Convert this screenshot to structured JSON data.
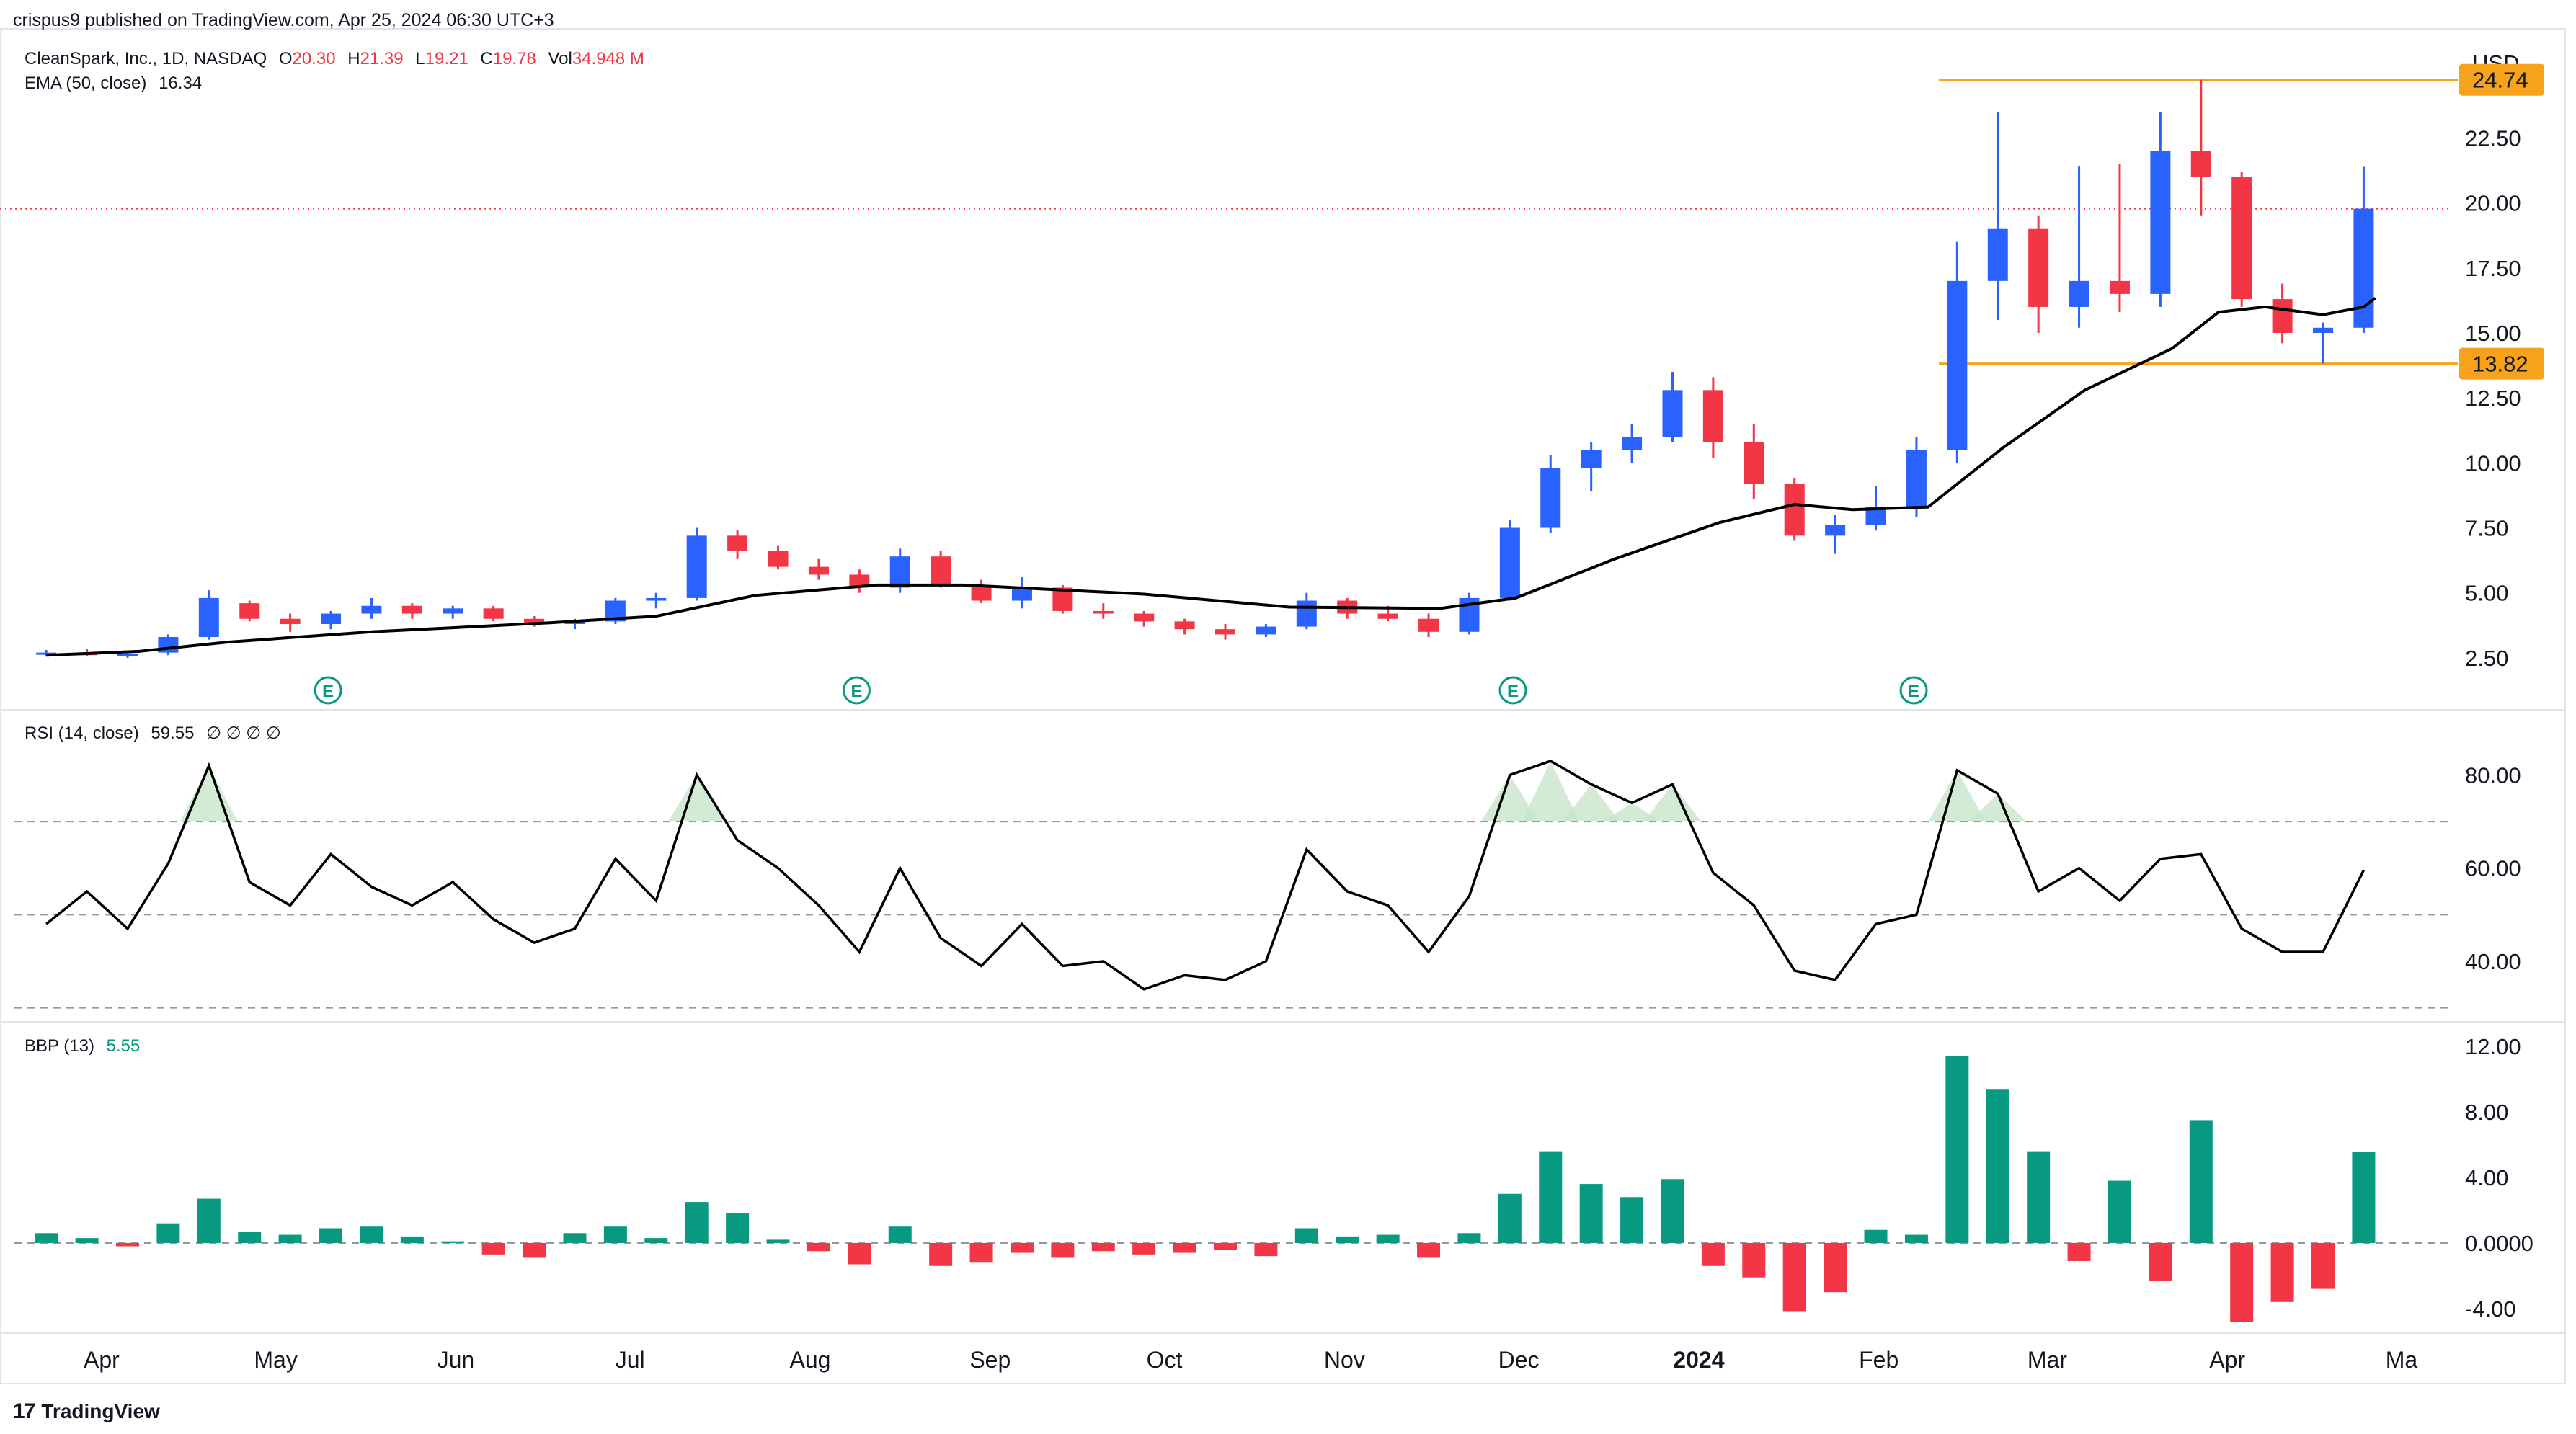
{
  "header": {
    "published": "crispus9 published on TradingView.com, Apr 25, 2024 06:30 UTC+3",
    "symbol_line": "CleanSpark, Inc., 1D, NASDAQ",
    "ohlc": {
      "o_label": "O",
      "o": "20.30",
      "h_label": "H",
      "h": "21.39",
      "l_label": "L",
      "l": "19.21",
      "c_label": "C",
      "c": "19.78",
      "vol_label": "Vol",
      "vol": "34.948 M"
    },
    "ema_label": "EMA (50, close)",
    "ema_value": "16.34",
    "rsi_label": "RSI (14, close)",
    "rsi_value": "59.55",
    "rsi_extra": "∅ ∅ ∅ ∅",
    "bbp_label": "BBP (13)",
    "bbp_value": "5.55"
  },
  "brand": {
    "logo": "17",
    "name": "TradingView"
  },
  "colors": {
    "up": "#2962ff",
    "down": "#f23645",
    "ema": "#000000",
    "level": "#f7a21b",
    "bbp_pos": "#089981",
    "bbp_neg": "#f23645",
    "rsi_fill": "#c8e6c9",
    "last_price_line": "#f23645"
  },
  "chart_data": [
    {
      "type": "candlestick",
      "title": "CleanSpark, Inc., 1D, NASDAQ",
      "currency_label": "USD",
      "y_ticks": [
        "2.50",
        "5.00",
        "7.50",
        "10.00",
        "12.50",
        "15.00",
        "17.50",
        "20.00",
        "22.50"
      ],
      "ylim": [
        0.5,
        26.7
      ],
      "x_ticks": [
        "Apr",
        "May",
        "Jun",
        "Jul",
        "Aug",
        "Sep",
        "Oct",
        "Nov",
        "Dec",
        "2024",
        "Feb",
        "Mar",
        "Apr",
        "Ma"
      ],
      "levels": [
        {
          "label": "24.74",
          "value": 24.74
        },
        {
          "label": "13.82",
          "value": 13.82
        }
      ],
      "last_price": 19.78,
      "earnings_markers": {
        "label": "E",
        "dates": [
          "2023-05-10",
          "2023-08-09",
          "2023-11-30",
          "2024-02-07"
        ]
      },
      "ema_series": {
        "name": "EMA (50, close)",
        "points": [
          [
            "2023-03-20",
            2.6
          ],
          [
            "2023-04-05",
            2.75
          ],
          [
            "2023-04-20",
            3.1
          ],
          [
            "2023-05-15",
            3.5
          ],
          [
            "2023-06-15",
            3.85
          ],
          [
            "2023-07-03",
            4.1
          ],
          [
            "2023-07-20",
            4.9
          ],
          [
            "2023-08-10",
            5.3
          ],
          [
            "2023-08-25",
            5.3
          ],
          [
            "2023-09-25",
            4.95
          ],
          [
            "2023-10-20",
            4.45
          ],
          [
            "2023-11-15",
            4.4
          ],
          [
            "2023-11-28",
            4.8
          ],
          [
            "2023-12-15",
            6.3
          ],
          [
            "2024-01-02",
            7.7
          ],
          [
            "2024-01-15",
            8.4
          ],
          [
            "2024-01-25",
            8.2
          ],
          [
            "2024-02-07",
            8.3
          ],
          [
            "2024-02-20",
            10.6
          ],
          [
            "2024-03-05",
            12.8
          ],
          [
            "2024-03-20",
            14.4
          ],
          [
            "2024-03-28",
            15.8
          ],
          [
            "2024-04-05",
            16.0
          ],
          [
            "2024-04-15",
            15.7
          ],
          [
            "2024-04-22",
            16.0
          ],
          [
            "2024-04-24",
            16.34
          ]
        ]
      },
      "ohlc": [
        [
          "2023-03-20",
          2.65,
          2.8,
          2.55,
          2.7
        ],
        [
          "2023-03-27",
          2.7,
          2.85,
          2.55,
          2.6
        ],
        [
          "2023-04-03",
          2.6,
          2.75,
          2.5,
          2.65
        ],
        [
          "2023-04-10",
          2.7,
          3.4,
          2.6,
          3.3
        ],
        [
          "2023-04-17",
          3.3,
          5.1,
          3.2,
          4.8
        ],
        [
          "2023-04-24",
          4.6,
          4.7,
          3.9,
          4.0
        ],
        [
          "2023-05-01",
          4.0,
          4.2,
          3.5,
          3.8
        ],
        [
          "2023-05-08",
          3.8,
          4.3,
          3.6,
          4.2
        ],
        [
          "2023-05-15",
          4.2,
          4.8,
          4.0,
          4.5
        ],
        [
          "2023-05-22",
          4.5,
          4.6,
          4.0,
          4.2
        ],
        [
          "2023-05-29",
          4.2,
          4.5,
          4.0,
          4.4
        ],
        [
          "2023-06-05",
          4.4,
          4.5,
          3.9,
          4.0
        ],
        [
          "2023-06-12",
          4.0,
          4.1,
          3.7,
          3.8
        ],
        [
          "2023-06-19",
          3.8,
          4.0,
          3.6,
          3.9
        ],
        [
          "2023-06-26",
          3.9,
          4.8,
          3.8,
          4.7
        ],
        [
          "2023-07-03",
          4.7,
          5.0,
          4.4,
          4.8
        ],
        [
          "2023-07-10",
          4.8,
          7.5,
          4.7,
          7.2
        ],
        [
          "2023-07-17",
          7.2,
          7.4,
          6.3,
          6.6
        ],
        [
          "2023-07-24",
          6.6,
          6.8,
          5.9,
          6.0
        ],
        [
          "2023-07-31",
          6.0,
          6.3,
          5.5,
          5.7
        ],
        [
          "2023-08-07",
          5.7,
          5.9,
          5.0,
          5.2
        ],
        [
          "2023-08-14",
          5.2,
          6.7,
          5.0,
          6.4
        ],
        [
          "2023-08-21",
          6.4,
          6.6,
          5.2,
          5.3
        ],
        [
          "2023-08-28",
          5.3,
          5.5,
          4.6,
          4.7
        ],
        [
          "2023-09-04",
          4.7,
          5.6,
          4.4,
          5.2
        ],
        [
          "2023-09-11",
          5.2,
          5.3,
          4.2,
          4.3
        ],
        [
          "2023-09-18",
          4.3,
          4.6,
          4.0,
          4.2
        ],
        [
          "2023-09-25",
          4.2,
          4.3,
          3.7,
          3.9
        ],
        [
          "2023-10-02",
          3.9,
          4.0,
          3.4,
          3.6
        ],
        [
          "2023-10-09",
          3.6,
          3.8,
          3.2,
          3.4
        ],
        [
          "2023-10-16",
          3.4,
          3.8,
          3.3,
          3.7
        ],
        [
          "2023-10-23",
          3.7,
          5.0,
          3.6,
          4.7
        ],
        [
          "2023-10-30",
          4.7,
          4.8,
          4.0,
          4.2
        ],
        [
          "2023-11-06",
          4.2,
          4.5,
          3.9,
          4.0
        ],
        [
          "2023-11-13",
          4.0,
          4.2,
          3.3,
          3.5
        ],
        [
          "2023-11-20",
          3.5,
          5.0,
          3.4,
          4.8
        ],
        [
          "2023-11-27",
          4.8,
          7.8,
          4.7,
          7.5
        ],
        [
          "2023-12-04",
          7.5,
          10.3,
          7.3,
          9.8
        ],
        [
          "2023-12-11",
          9.8,
          10.8,
          8.9,
          10.5
        ],
        [
          "2023-12-18",
          10.5,
          11.5,
          10.0,
          11.0
        ],
        [
          "2023-12-25",
          11.0,
          13.5,
          10.8,
          12.8
        ],
        [
          "2024-01-01",
          12.8,
          13.3,
          10.2,
          10.8
        ],
        [
          "2024-01-08",
          10.8,
          11.5,
          8.6,
          9.2
        ],
        [
          "2024-01-15",
          9.2,
          9.4,
          7.0,
          7.2
        ],
        [
          "2024-01-22",
          7.2,
          8.0,
          6.5,
          7.6
        ],
        [
          "2024-01-29",
          7.6,
          9.1,
          7.4,
          8.3
        ],
        [
          "2024-02-05",
          8.3,
          11.0,
          7.9,
          10.5
        ],
        [
          "2024-02-12",
          10.5,
          18.5,
          10.0,
          17.0
        ],
        [
          "2024-02-19",
          17.0,
          23.5,
          15.5,
          19.0
        ],
        [
          "2024-02-26",
          19.0,
          19.5,
          15.0,
          16.0
        ],
        [
          "2024-03-04",
          16.0,
          21.4,
          15.2,
          17.0
        ],
        [
          "2024-03-11",
          17.0,
          21.5,
          15.8,
          16.5
        ],
        [
          "2024-03-18",
          16.5,
          23.5,
          16.0,
          22.0
        ],
        [
          "2024-03-25",
          22.0,
          24.74,
          19.5,
          21.0
        ],
        [
          "2024-04-01",
          21.0,
          21.2,
          16.0,
          16.3
        ],
        [
          "2024-04-08",
          16.3,
          16.9,
          14.6,
          15.0
        ],
        [
          "2024-04-15",
          15.0,
          15.4,
          13.82,
          15.2
        ],
        [
          "2024-04-22",
          15.2,
          21.39,
          15.0,
          19.78
        ]
      ]
    },
    {
      "type": "line",
      "title": "RSI (14, close)",
      "y_ticks": [
        "40.00",
        "60.00",
        "80.00"
      ],
      "ylim": [
        27,
        94
      ],
      "bands": [
        30,
        50,
        70
      ],
      "series": [
        {
          "points": [
            [
              "2023-03-20",
              48
            ],
            [
              "2023-03-27",
              55
            ],
            [
              "2023-04-03",
              47
            ],
            [
              "2023-04-10",
              61
            ],
            [
              "2023-04-17",
              82
            ],
            [
              "2023-04-24",
              57
            ],
            [
              "2023-05-01",
              52
            ],
            [
              "2023-05-08",
              63
            ],
            [
              "2023-05-15",
              56
            ],
            [
              "2023-05-22",
              52
            ],
            [
              "2023-05-29",
              57
            ],
            [
              "2023-06-05",
              49
            ],
            [
              "2023-06-12",
              44
            ],
            [
              "2023-06-19",
              47
            ],
            [
              "2023-06-26",
              62
            ],
            [
              "2023-07-03",
              53
            ],
            [
              "2023-07-10",
              80
            ],
            [
              "2023-07-17",
              66
            ],
            [
              "2023-07-24",
              60
            ],
            [
              "2023-07-31",
              52
            ],
            [
              "2023-08-07",
              42
            ],
            [
              "2023-08-14",
              60
            ],
            [
              "2023-08-21",
              45
            ],
            [
              "2023-08-28",
              39
            ],
            [
              "2023-09-04",
              48
            ],
            [
              "2023-09-11",
              39
            ],
            [
              "2023-09-18",
              40
            ],
            [
              "2023-09-25",
              34
            ],
            [
              "2023-10-02",
              37
            ],
            [
              "2023-10-09",
              36
            ],
            [
              "2023-10-16",
              40
            ],
            [
              "2023-10-23",
              64
            ],
            [
              "2023-10-30",
              55
            ],
            [
              "2023-11-06",
              52
            ],
            [
              "2023-11-13",
              42
            ],
            [
              "2023-11-20",
              54
            ],
            [
              "2023-11-27",
              80
            ],
            [
              "2023-12-04",
              83
            ],
            [
              "2023-12-11",
              78
            ],
            [
              "2023-12-18",
              74
            ],
            [
              "2023-12-25",
              78
            ],
            [
              "2024-01-01",
              59
            ],
            [
              "2024-01-08",
              52
            ],
            [
              "2024-01-15",
              38
            ],
            [
              "2024-01-22",
              36
            ],
            [
              "2024-01-29",
              48
            ],
            [
              "2024-02-05",
              50
            ],
            [
              "2024-02-12",
              81
            ],
            [
              "2024-02-19",
              76
            ],
            [
              "2024-02-26",
              55
            ],
            [
              "2024-03-04",
              60
            ],
            [
              "2024-03-11",
              53
            ],
            [
              "2024-03-18",
              62
            ],
            [
              "2024-03-25",
              63
            ],
            [
              "2024-04-01",
              47
            ],
            [
              "2024-04-08",
              42
            ],
            [
              "2024-04-15",
              42
            ],
            [
              "2024-04-22",
              59.55
            ]
          ]
        }
      ]
    },
    {
      "type": "bar",
      "title": "BBP (13)",
      "y_ticks": [
        "-4.00",
        "0.0000",
        "4.00",
        "8.00",
        "12.00"
      ],
      "ylim": [
        -5.5,
        13.5
      ],
      "x": [
        "2023-03-20",
        "2023-03-27",
        "2023-04-03",
        "2023-04-10",
        "2023-04-17",
        "2023-04-24",
        "2023-05-01",
        "2023-05-08",
        "2023-05-15",
        "2023-05-22",
        "2023-05-29",
        "2023-06-05",
        "2023-06-12",
        "2023-06-19",
        "2023-06-26",
        "2023-07-03",
        "2023-07-10",
        "2023-07-17",
        "2023-07-24",
        "2023-07-31",
        "2023-08-07",
        "2023-08-14",
        "2023-08-21",
        "2023-08-28",
        "2023-09-04",
        "2023-09-11",
        "2023-09-18",
        "2023-09-25",
        "2023-10-02",
        "2023-10-09",
        "2023-10-16",
        "2023-10-23",
        "2023-10-30",
        "2023-11-06",
        "2023-11-13",
        "2023-11-20",
        "2023-11-27",
        "2023-12-04",
        "2023-12-11",
        "2023-12-18",
        "2023-12-25",
        "2024-01-01",
        "2024-01-08",
        "2024-01-15",
        "2024-01-22",
        "2024-01-29",
        "2024-02-05",
        "2024-02-12",
        "2024-02-19",
        "2024-02-26",
        "2024-03-04",
        "2024-03-11",
        "2024-03-18",
        "2024-03-25",
        "2024-04-01",
        "2024-04-08",
        "2024-04-15",
        "2024-04-22"
      ],
      "values": [
        0.6,
        0.3,
        -0.2,
        1.2,
        2.7,
        0.7,
        0.5,
        0.9,
        1.0,
        0.4,
        0.1,
        -0.7,
        -0.9,
        0.6,
        1.0,
        0.3,
        2.5,
        1.8,
        0.2,
        -0.5,
        -1.3,
        1.0,
        -1.4,
        -1.2,
        -0.6,
        -0.9,
        -0.5,
        -0.7,
        -0.6,
        -0.4,
        -0.8,
        0.9,
        0.4,
        0.5,
        -0.9,
        0.6,
        3.0,
        5.6,
        3.6,
        2.8,
        3.9,
        -1.4,
        -2.1,
        -4.2,
        -3.0,
        0.8,
        0.5,
        11.4,
        9.4,
        5.6,
        -1.1,
        3.8,
        -2.3,
        7.5,
        -4.8,
        -3.6,
        -2.8,
        5.55
      ]
    }
  ]
}
